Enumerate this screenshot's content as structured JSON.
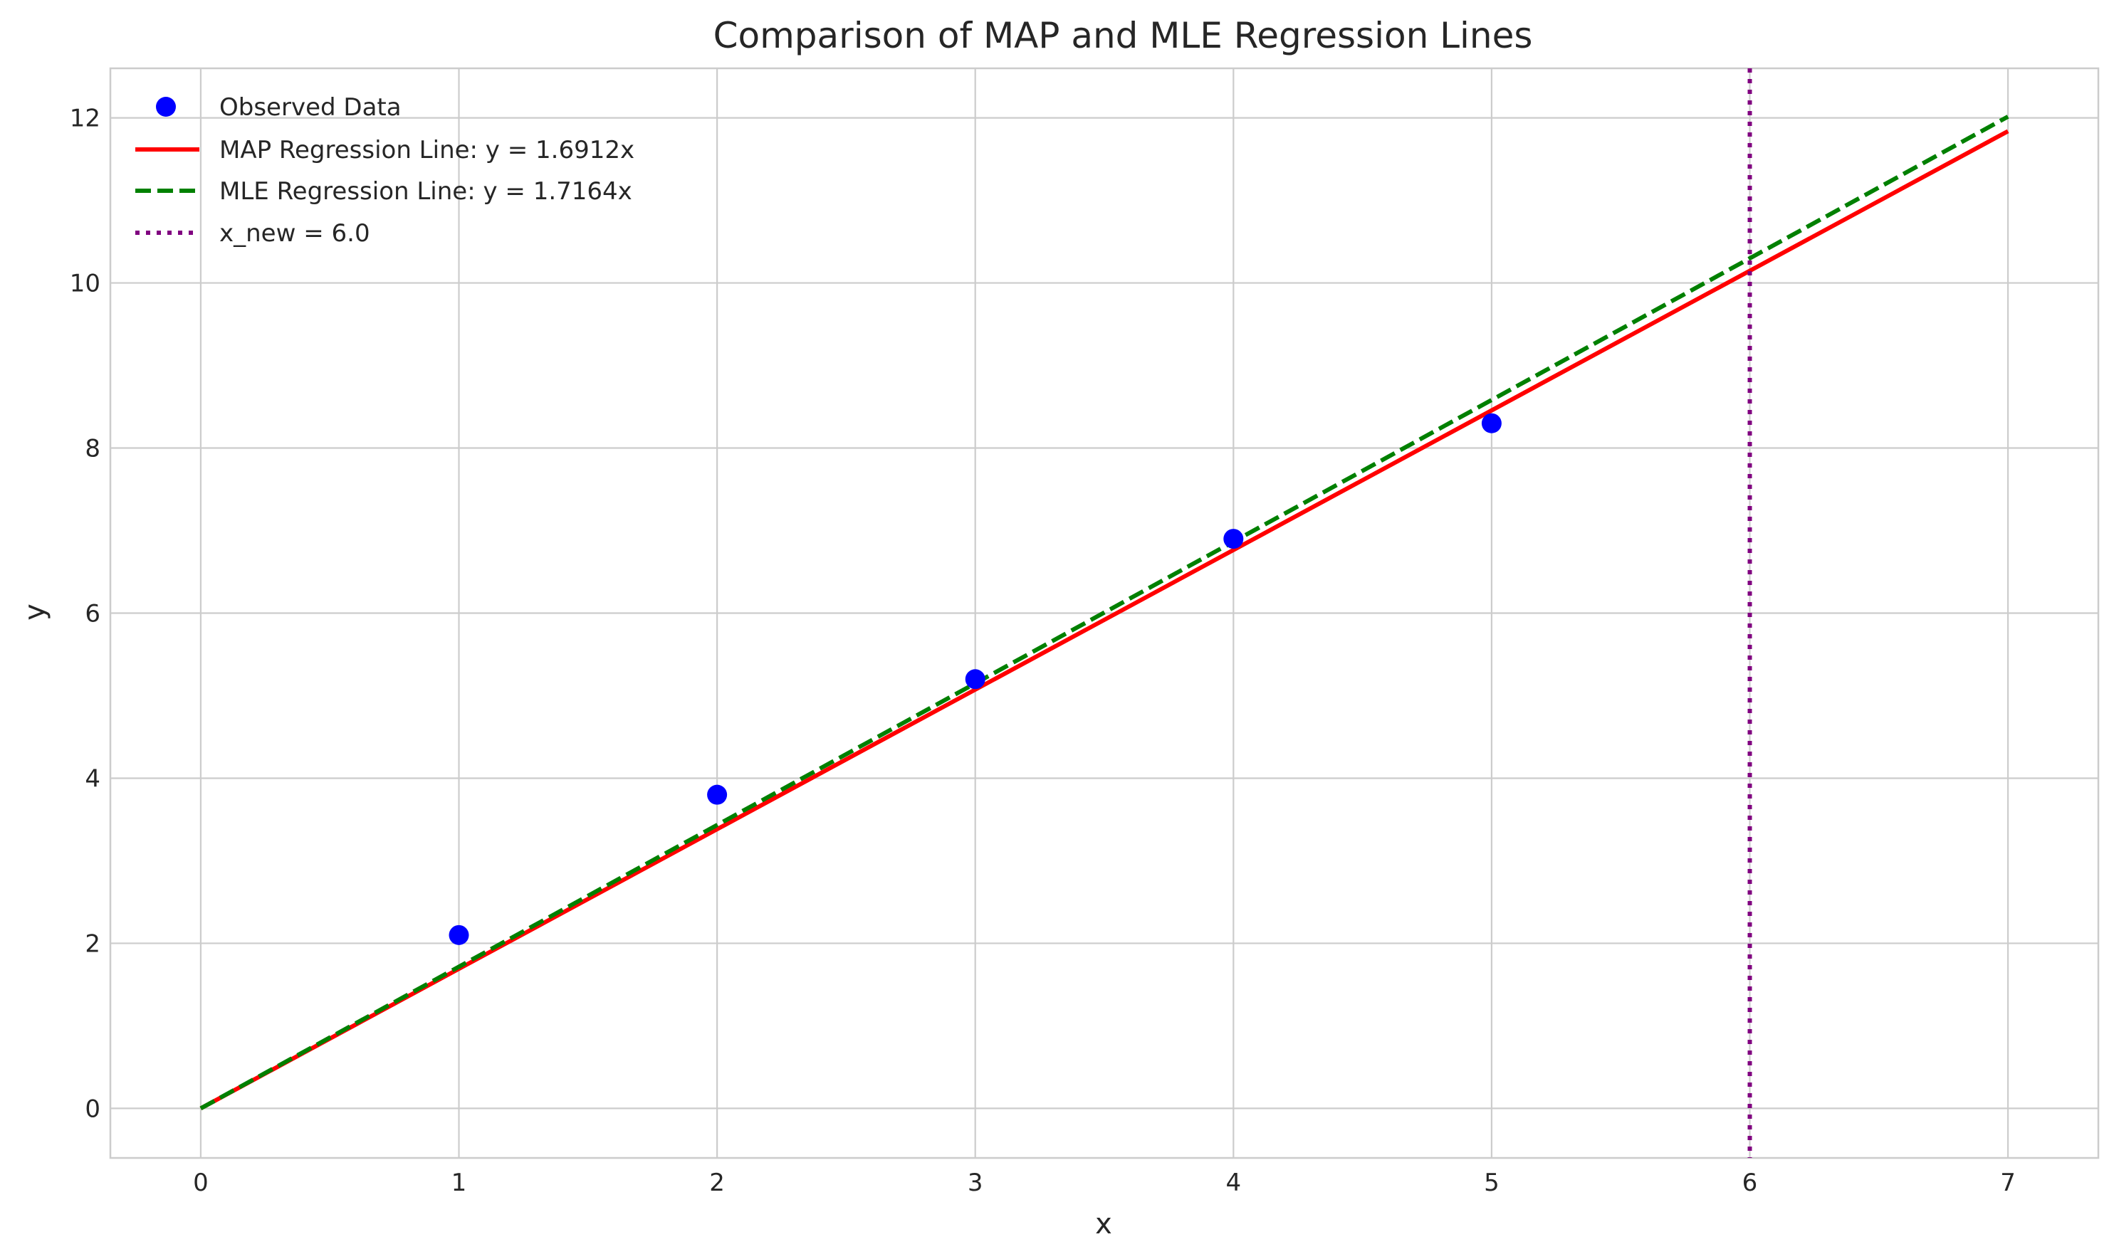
{
  "chart_data": {
    "type": "line",
    "title": "Comparison of MAP and MLE Regression Lines",
    "xlabel": "x",
    "ylabel": "y",
    "xlim": [
      -0.35,
      7.35
    ],
    "ylim": [
      -0.6,
      12.6
    ],
    "xticks": [
      0,
      1,
      2,
      3,
      4,
      5,
      6,
      7
    ],
    "yticks": [
      0,
      2,
      4,
      6,
      8,
      10,
      12
    ],
    "grid": true,
    "legend_position": "top-left",
    "scatter": {
      "name": "Observed Data",
      "color": "#0000ff",
      "x": [
        1,
        2,
        3,
        4,
        5
      ],
      "y": [
        2.1,
        3.8,
        5.2,
        6.9,
        8.3
      ]
    },
    "series": [
      {
        "name": "MAP Regression Line: y = 1.6912x",
        "slope": 1.6912,
        "x": [
          0,
          7
        ],
        "color": "#ff0000",
        "style": "solid"
      },
      {
        "name": "MLE Regression Line: y = 1.7164x",
        "slope": 1.7164,
        "x": [
          0,
          7
        ],
        "color": "#008000",
        "style": "dashed"
      }
    ],
    "vline": {
      "name": "x_new = 6.0",
      "x": 6.0,
      "color": "#800080",
      "style": "dotted"
    }
  }
}
